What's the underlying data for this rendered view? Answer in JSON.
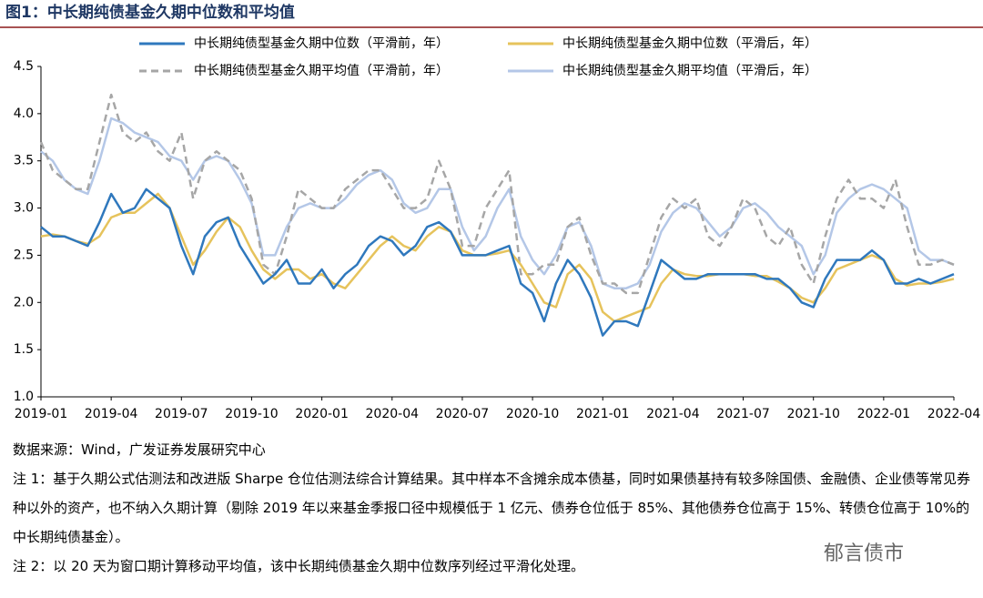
{
  "chart_data": {
    "type": "line",
    "title": "图1：中长期纯债基金久期中位数和平均值",
    "categories": [
      "2019-01",
      null,
      null,
      null,
      null,
      null,
      "2019-04",
      null,
      null,
      null,
      null,
      null,
      "2019-07",
      null,
      null,
      null,
      null,
      null,
      "2019-10",
      null,
      null,
      null,
      null,
      null,
      "2020-01",
      null,
      null,
      null,
      null,
      null,
      "2020-04",
      null,
      null,
      null,
      null,
      null,
      "2020-07",
      null,
      null,
      null,
      null,
      null,
      "2020-10",
      null,
      null,
      null,
      null,
      null,
      "2021-01",
      null,
      null,
      null,
      null,
      null,
      "2021-04",
      null,
      null,
      null,
      null,
      null,
      "2021-07",
      null,
      null,
      null,
      null,
      null,
      "2021-10",
      null,
      null,
      null,
      null,
      null,
      "2022-01",
      null,
      null,
      null,
      null,
      null,
      "2022-04"
    ],
    "series": [
      {
        "name": "中长期纯债型基金久期中位数（平滑前，年）",
        "color": "#2f78bd",
        "style": "solid",
        "values": [
          2.8,
          2.7,
          2.7,
          2.65,
          2.6,
          2.85,
          3.15,
          2.95,
          3.0,
          3.2,
          3.1,
          3.0,
          2.6,
          2.3,
          2.7,
          2.85,
          2.9,
          2.6,
          2.4,
          2.2,
          2.3,
          2.45,
          2.2,
          2.2,
          2.35,
          2.15,
          2.3,
          2.4,
          2.6,
          2.7,
          2.65,
          2.5,
          2.6,
          2.8,
          2.85,
          2.75,
          2.5,
          2.5,
          2.5,
          2.55,
          2.6,
          2.2,
          2.1,
          1.8,
          2.2,
          2.45,
          2.3,
          2.05,
          1.65,
          1.8,
          1.8,
          1.75,
          2.1,
          2.45,
          2.35,
          2.25,
          2.25,
          2.3,
          2.3,
          2.3,
          2.3,
          2.3,
          2.25,
          2.25,
          2.15,
          2.0,
          1.95,
          2.25,
          2.45,
          2.45,
          2.45,
          2.55,
          2.45,
          2.2,
          2.2,
          2.25,
          2.2,
          2.25,
          2.3
        ]
      },
      {
        "name": "中长期纯债型基金久期中位数（平滑后，年）",
        "color": "#e6c35c",
        "style": "solid",
        "values": [
          2.7,
          2.72,
          2.7,
          2.65,
          2.62,
          2.7,
          2.9,
          2.95,
          2.95,
          3.05,
          3.15,
          3.0,
          2.7,
          2.4,
          2.55,
          2.75,
          2.9,
          2.8,
          2.55,
          2.35,
          2.25,
          2.35,
          2.35,
          2.25,
          2.3,
          2.2,
          2.15,
          2.3,
          2.45,
          2.6,
          2.7,
          2.6,
          2.55,
          2.7,
          2.8,
          2.75,
          2.55,
          2.5,
          2.5,
          2.52,
          2.55,
          2.4,
          2.2,
          2.0,
          1.95,
          2.3,
          2.4,
          2.25,
          1.9,
          1.8,
          1.85,
          1.9,
          1.95,
          2.2,
          2.35,
          2.3,
          2.28,
          2.28,
          2.3,
          2.3,
          2.3,
          2.28,
          2.28,
          2.22,
          2.15,
          2.05,
          2.0,
          2.15,
          2.35,
          2.4,
          2.45,
          2.5,
          2.45,
          2.25,
          2.18,
          2.2,
          2.2,
          2.22,
          2.25
        ]
      },
      {
        "name": "中长期纯债型基金久期平均值（平滑前，年）",
        "color": "#a6a6a6",
        "style": "dashed",
        "values": [
          3.7,
          3.4,
          3.3,
          3.2,
          3.2,
          3.7,
          4.2,
          3.8,
          3.7,
          3.8,
          3.6,
          3.5,
          3.8,
          3.1,
          3.5,
          3.6,
          3.5,
          3.4,
          3.1,
          2.4,
          2.3,
          2.7,
          3.2,
          3.1,
          3.0,
          3.0,
          3.2,
          3.3,
          3.4,
          3.4,
          3.2,
          3.0,
          3.0,
          3.1,
          3.5,
          3.2,
          2.6,
          2.6,
          3.0,
          3.2,
          3.4,
          2.3,
          2.3,
          2.4,
          2.4,
          2.8,
          2.9,
          2.5,
          2.2,
          2.2,
          2.1,
          2.1,
          2.5,
          2.9,
          3.1,
          3.0,
          3.1,
          2.7,
          2.6,
          2.8,
          3.1,
          3.0,
          2.7,
          2.6,
          2.8,
          2.4,
          2.2,
          2.7,
          3.1,
          3.3,
          3.1,
          3.1,
          3.0,
          3.3,
          2.8,
          2.4,
          2.4,
          2.45,
          2.4
        ]
      },
      {
        "name": "中长期纯债型基金久期平均值（平滑后，年）",
        "color": "#b4c7e7",
        "style": "solid",
        "values": [
          3.6,
          3.5,
          3.3,
          3.2,
          3.15,
          3.5,
          3.95,
          3.9,
          3.8,
          3.75,
          3.7,
          3.55,
          3.5,
          3.3,
          3.5,
          3.55,
          3.5,
          3.3,
          3.05,
          2.5,
          2.5,
          2.8,
          3.0,
          3.05,
          3.0,
          3.0,
          3.1,
          3.25,
          3.35,
          3.4,
          3.3,
          3.05,
          2.95,
          3.0,
          3.2,
          3.2,
          2.8,
          2.55,
          2.7,
          3.0,
          3.2,
          2.7,
          2.45,
          2.3,
          2.5,
          2.8,
          2.85,
          2.6,
          2.2,
          2.15,
          2.15,
          2.2,
          2.4,
          2.75,
          2.95,
          3.05,
          3.0,
          2.85,
          2.7,
          2.8,
          3.0,
          3.05,
          2.95,
          2.8,
          2.7,
          2.6,
          2.3,
          2.5,
          2.95,
          3.1,
          3.2,
          3.25,
          3.2,
          3.1,
          3.0,
          2.55,
          2.45,
          2.45,
          2.4
        ]
      }
    ],
    "ylim": [
      1,
      4.5
    ],
    "yticks": [
      {
        "value": 1,
        "label": "1.0"
      },
      1.5,
      {
        "value": 2,
        "label": "2.0"
      },
      2.5,
      {
        "value": 3,
        "label": "3.0"
      },
      3.5,
      {
        "value": 4,
        "label": "4.0"
      },
      4.5
    ],
    "grid": false
  },
  "notes": [
    "数据来源：Wind，广发证券发展研究中心",
    "注 1：基于久期公式估测法和改进版 Sharpe 仓位估测法综合计算结果。其中样本不含摊余成本债基，同时如果债基持有较多除国债、金融债、企业债等常见券种以外的资产，也不纳入久期计算（剔除 2019 年以来基金季报口径中规模低于 1 亿元、债券仓位低于 85%、其他债券仓位高于 15%、转债仓位高于 10%的中长期纯债基金）。",
    "注 2：以 20 天为窗口期计算移动平均值，该中长期纯债基金久期中位数序列经过平滑化处理。"
  ],
  "watermark": "郁言债市"
}
